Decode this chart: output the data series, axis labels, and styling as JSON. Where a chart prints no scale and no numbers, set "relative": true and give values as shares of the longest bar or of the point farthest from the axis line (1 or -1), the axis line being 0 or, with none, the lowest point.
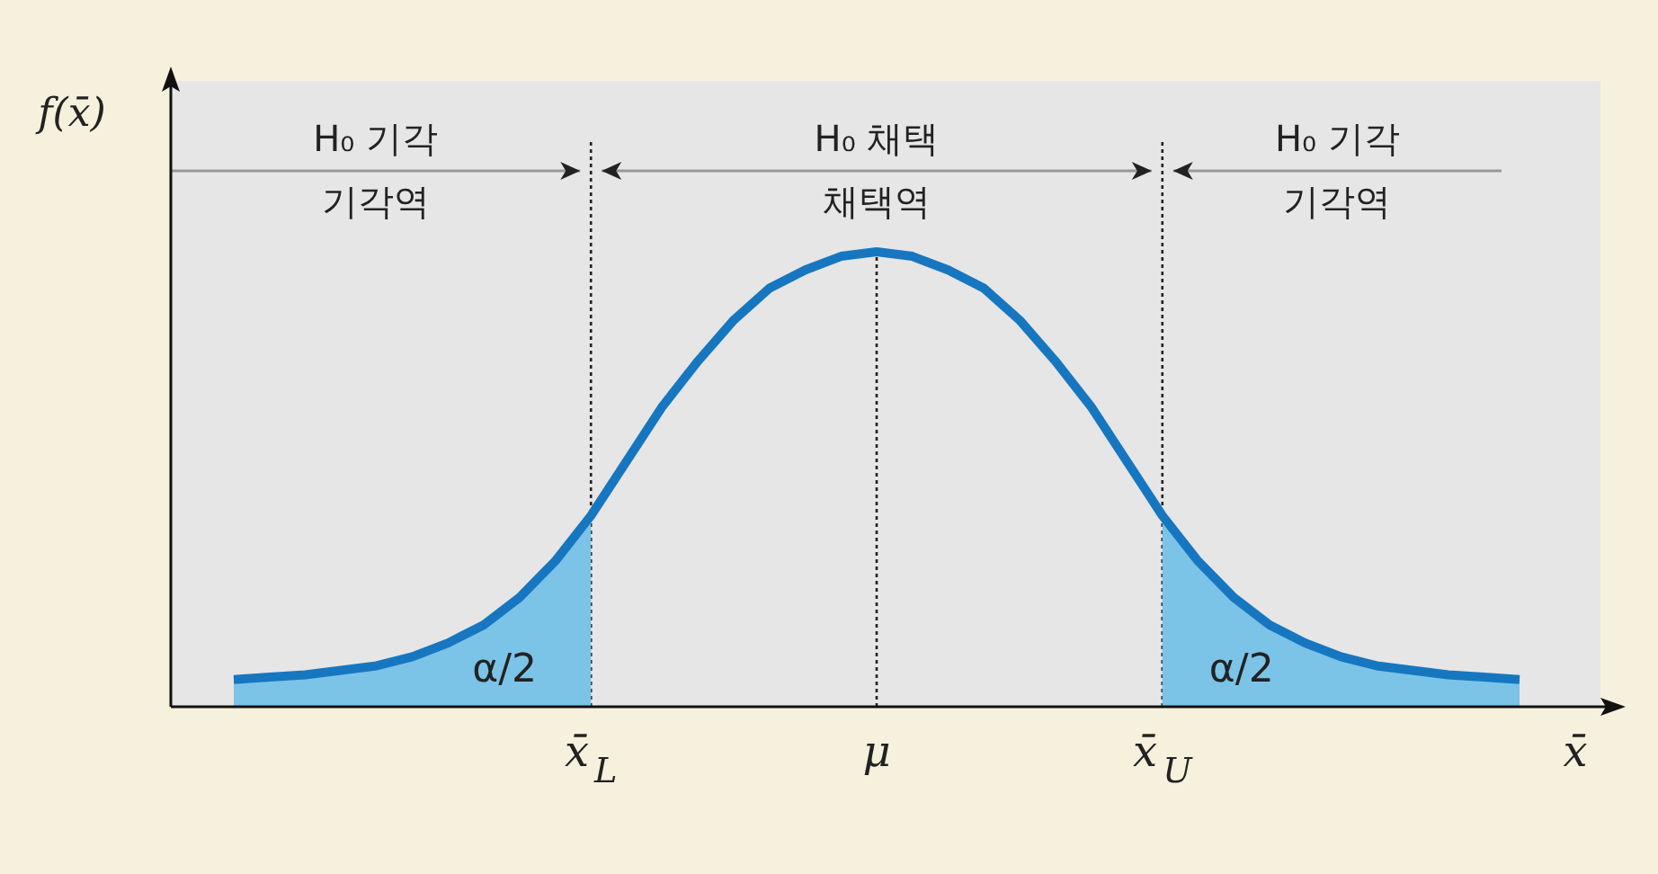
{
  "chart_data": {
    "type": "line",
    "relative": true,
    "xlabel": "x̄",
    "ylabel": "f(x̄)",
    "categories": [
      null,
      null,
      null,
      null,
      null,
      null,
      null,
      null,
      null,
      null,
      "x̄$_{L}$",
      null,
      null,
      null,
      null,
      null,
      null,
      null,
      "μ",
      null,
      null,
      null,
      null,
      null,
      null,
      null,
      "x̄$_{U}$",
      null,
      null,
      null,
      null,
      null,
      null,
      null,
      null,
      null,
      null
    ],
    "series": [
      {
        "type": "area",
        "color": "#7cc3e8",
        "values": [
          0.06,
          0.065,
          0.07,
          0.08,
          0.09,
          0.11,
          0.14,
          0.18,
          0.24,
          0.32,
          0.42,
          null,
          null,
          null,
          null,
          null,
          null,
          null,
          null,
          null,
          null,
          null,
          null,
          null,
          null,
          null,
          null,
          null,
          null,
          null,
          null,
          null,
          null,
          null,
          null,
          null,
          null
        ]
      },
      {
        "type": "area",
        "color": "#7cc3e8",
        "values": [
          null,
          null,
          null,
          null,
          null,
          null,
          null,
          null,
          null,
          null,
          null,
          null,
          null,
          null,
          null,
          null,
          null,
          null,
          null,
          null,
          null,
          null,
          null,
          null,
          null,
          null,
          0.42,
          0.32,
          0.24,
          0.18,
          0.14,
          0.11,
          0.09,
          0.08,
          0.07,
          0.065,
          0.06
        ]
      },
      {
        "color": "#1677c0",
        "values": [
          0.06,
          0.065,
          0.07,
          0.08,
          0.09,
          0.11,
          0.14,
          0.18,
          0.24,
          0.32,
          0.42,
          0.54,
          0.66,
          0.76,
          0.85,
          0.92,
          0.96,
          0.99,
          1.0,
          0.99,
          0.96,
          0.92,
          0.85,
          0.76,
          0.66,
          0.54,
          0.42,
          0.32,
          0.24,
          0.18,
          0.14,
          0.11,
          0.09,
          0.08,
          0.07,
          0.065,
          0.06
        ]
      }
    ],
    "ref_lines": [
      {
        "axis": "x",
        "value": "x̄$_{L}$",
        "line_style": "dotted"
      },
      {
        "axis": "x",
        "value": "μ",
        "line_style": "dotted"
      },
      {
        "axis": "x",
        "value": "x̄$_{U}$",
        "line_style": "dotted"
      }
    ],
    "annotations": [
      "α/2",
      "α/2",
      "H₀ 기각\n기각역",
      "H₀ 채택\n채택역",
      "H₀ 기각\n기각역"
    ],
    "marker": "none",
    "line_style": "solid"
  }
}
